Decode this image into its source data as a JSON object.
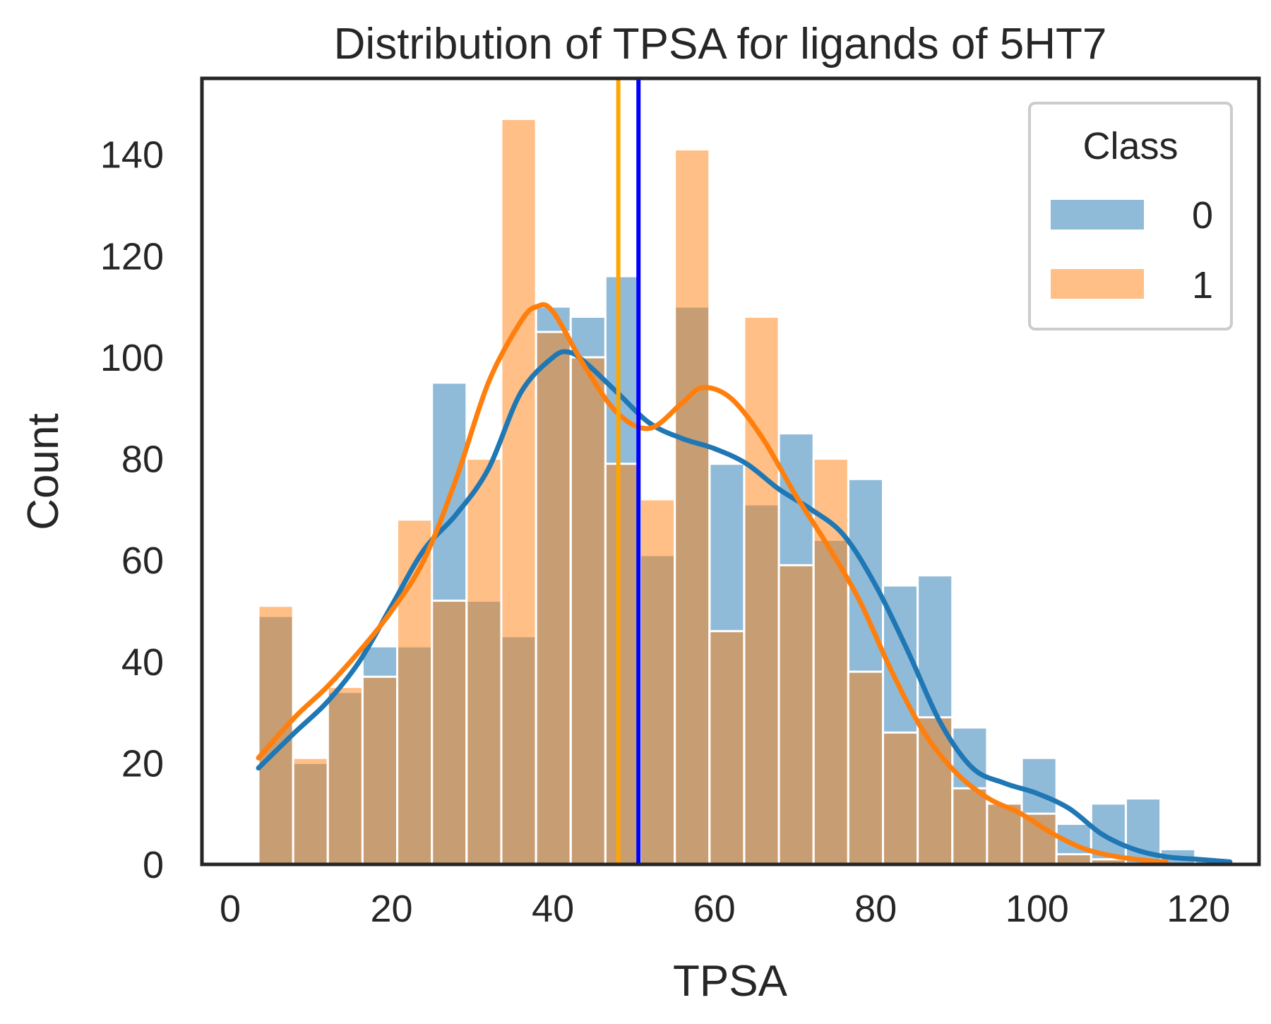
{
  "chart_data": {
    "type": "bar",
    "title": "Distribution of TPSA for ligands of 5HT7",
    "xlabel": "TPSA",
    "ylabel": "Count",
    "xlim": [
      -3.5,
      127.5
    ],
    "ylim": [
      0,
      155
    ],
    "xticks": [
      0,
      20,
      40,
      60,
      80,
      100,
      120
    ],
    "yticks": [
      0,
      20,
      40,
      60,
      80,
      100,
      120,
      140
    ],
    "grid": false,
    "legend": {
      "title": "Class",
      "placement": "top-right"
    },
    "bin_edges": [
      3.5,
      7.8,
      12.1,
      16.4,
      20.7,
      25.0,
      29.3,
      33.6,
      37.9,
      42.2,
      46.5,
      50.8,
      55.1,
      59.4,
      63.7,
      68.0,
      72.3,
      76.6,
      80.9,
      85.2,
      89.5,
      93.8,
      98.1,
      102.4,
      106.7,
      111.0,
      115.3,
      119.6,
      123.9
    ],
    "series": [
      {
        "name": "0",
        "color": "#1f77b4",
        "values": [
          49,
          20,
          34,
          43,
          43,
          95,
          52,
          45,
          110,
          108,
          116,
          61,
          110,
          79,
          71,
          85,
          64,
          76,
          55,
          57,
          27,
          12,
          21,
          8,
          12,
          13,
          3,
          1
        ]
      },
      {
        "name": "1",
        "color": "#ff7f0e",
        "values": [
          51,
          21,
          35,
          37,
          68,
          52,
          80,
          147,
          105,
          100,
          79,
          72,
          141,
          46,
          108,
          59,
          80,
          38,
          26,
          29,
          15,
          12,
          10,
          2,
          1,
          0,
          0,
          0
        ]
      }
    ],
    "kde": [
      {
        "name": "0",
        "color": "#1f77b4",
        "x": [
          3.5,
          8,
          12,
          16,
          20,
          24,
          28,
          32,
          36,
          40,
          42,
          44,
          48,
          52,
          56,
          60,
          64,
          68,
          72,
          76,
          80,
          84,
          88,
          92,
          96,
          100,
          104,
          108,
          112,
          116,
          120,
          123.9
        ],
        "y": [
          19,
          26,
          32,
          40,
          51,
          62,
          69,
          78,
          93,
          100,
          101,
          99,
          93,
          87,
          84,
          82,
          79,
          74,
          70,
          65,
          55,
          42,
          28,
          19,
          16,
          14,
          11,
          6,
          3,
          1.5,
          1,
          0.5
        ]
      },
      {
        "name": "1",
        "color": "#ff7f0e",
        "x": [
          3.5,
          8,
          12,
          16,
          20,
          24,
          28,
          32,
          36,
          38,
          40,
          44,
          48,
          52,
          56,
          58.5,
          62,
          66,
          70,
          74,
          78,
          82,
          86,
          90,
          94,
          98,
          102,
          106,
          110,
          114,
          116
        ],
        "y": [
          21,
          29,
          35,
          42,
          50,
          60,
          76,
          95,
          107,
          110,
          109,
          98,
          89,
          86,
          91,
          94,
          92,
          84,
          73,
          63,
          52,
          38,
          26,
          18,
          13,
          10,
          6,
          3,
          1.5,
          0.7,
          0.5
        ]
      }
    ],
    "vlines": [
      {
        "x": 48.1,
        "color": "#ffa500"
      },
      {
        "x": 50.6,
        "color": "#0000ff"
      }
    ]
  }
}
